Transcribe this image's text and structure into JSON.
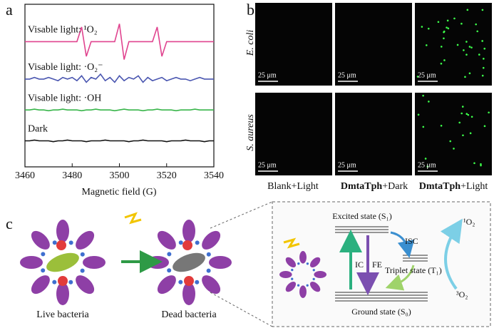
{
  "panel_labels": [
    "a",
    "b",
    "c"
  ],
  "chart_data": {
    "type": "line",
    "xlabel": "Magnetic field (G)",
    "xlim": [
      3460,
      3540
    ],
    "xticks": [
      3460,
      3480,
      3500,
      3520,
      3540
    ],
    "ylim": [
      0,
      100
    ],
    "x": [
      3460,
      3462,
      3464,
      3466,
      3468,
      3470,
      3472,
      3474,
      3476,
      3478,
      3480,
      3482,
      3484,
      3486,
      3488,
      3490,
      3492,
      3494,
      3496,
      3498,
      3500,
      3502,
      3504,
      3506,
      3508,
      3510,
      3512,
      3514,
      3516,
      3518,
      3520,
      3522,
      3524,
      3526,
      3528,
      3530,
      3532,
      3534,
      3536,
      3538,
      3540
    ],
    "series": [
      {
        "name": "Visable light: ¹O₂",
        "color": "#e0448f",
        "values": [
          77,
          77,
          77,
          77,
          77,
          77,
          77,
          77,
          77,
          77,
          77,
          77,
          86,
          68,
          77,
          77,
          77,
          77,
          77,
          77,
          88,
          66,
          77,
          77,
          77,
          77,
          77,
          77,
          86,
          68,
          77,
          77,
          77,
          77,
          77,
          77,
          77,
          77,
          77,
          77,
          77
        ]
      },
      {
        "name": "Visable light: ·O₂⁻",
        "color": "#4a56b0",
        "values": [
          54,
          54,
          55,
          54,
          54,
          55,
          54,
          53,
          55,
          54,
          55,
          53,
          56,
          52,
          55,
          54,
          57,
          53,
          55,
          52,
          56,
          53,
          55,
          54,
          56,
          52,
          55,
          53,
          54,
          55,
          53,
          54,
          55,
          54,
          54,
          53,
          54,
          55,
          54,
          54,
          54
        ]
      },
      {
        "name": "Visable light: ·OH",
        "color": "#38b54a",
        "values": [
          35,
          35,
          35.5,
          35,
          35,
          34.5,
          35,
          35,
          35.5,
          35,
          35,
          35,
          34.5,
          35,
          35,
          35.5,
          35,
          35,
          35,
          34.5,
          35,
          35.5,
          35,
          35,
          35,
          34.5,
          35,
          35,
          35.5,
          35,
          35,
          35,
          34.5,
          35,
          35,
          35,
          35.5,
          35,
          35,
          35,
          35
        ]
      },
      {
        "name": "Dark",
        "color": "#111111",
        "values": [
          16,
          16,
          16.5,
          16,
          16,
          16,
          15.5,
          16,
          16,
          16.5,
          16,
          16,
          16,
          15.5,
          16,
          16,
          16,
          16.5,
          16,
          16,
          16,
          16,
          15.5,
          16,
          16,
          16.5,
          16,
          16,
          16,
          16,
          15.5,
          16,
          16,
          16,
          16.5,
          16,
          16,
          16,
          15.5,
          16,
          16
        ]
      }
    ]
  },
  "microscopy": {
    "rows": [
      "E. coli",
      "S. aureus"
    ],
    "scale_bar": "25 μm",
    "columns": [
      {
        "text": "Blank+Light"
      },
      {
        "bold": "DmtaTph",
        "text": "+Dark"
      },
      {
        "bold": "DmtaTph",
        "text": "+Light"
      }
    ]
  },
  "scheme": {
    "live": "Live bacteria",
    "dead": "Dead bacteria",
    "excited": "Excited state (S₁)",
    "isc": "ISC",
    "triplet": "Triplet state (T₁)",
    "ic": "IC",
    "fe": "FE",
    "ground": "Ground state (S₀)",
    "singlet_oxygen": "¹O₂",
    "triplet_oxygen": "³O₂"
  }
}
